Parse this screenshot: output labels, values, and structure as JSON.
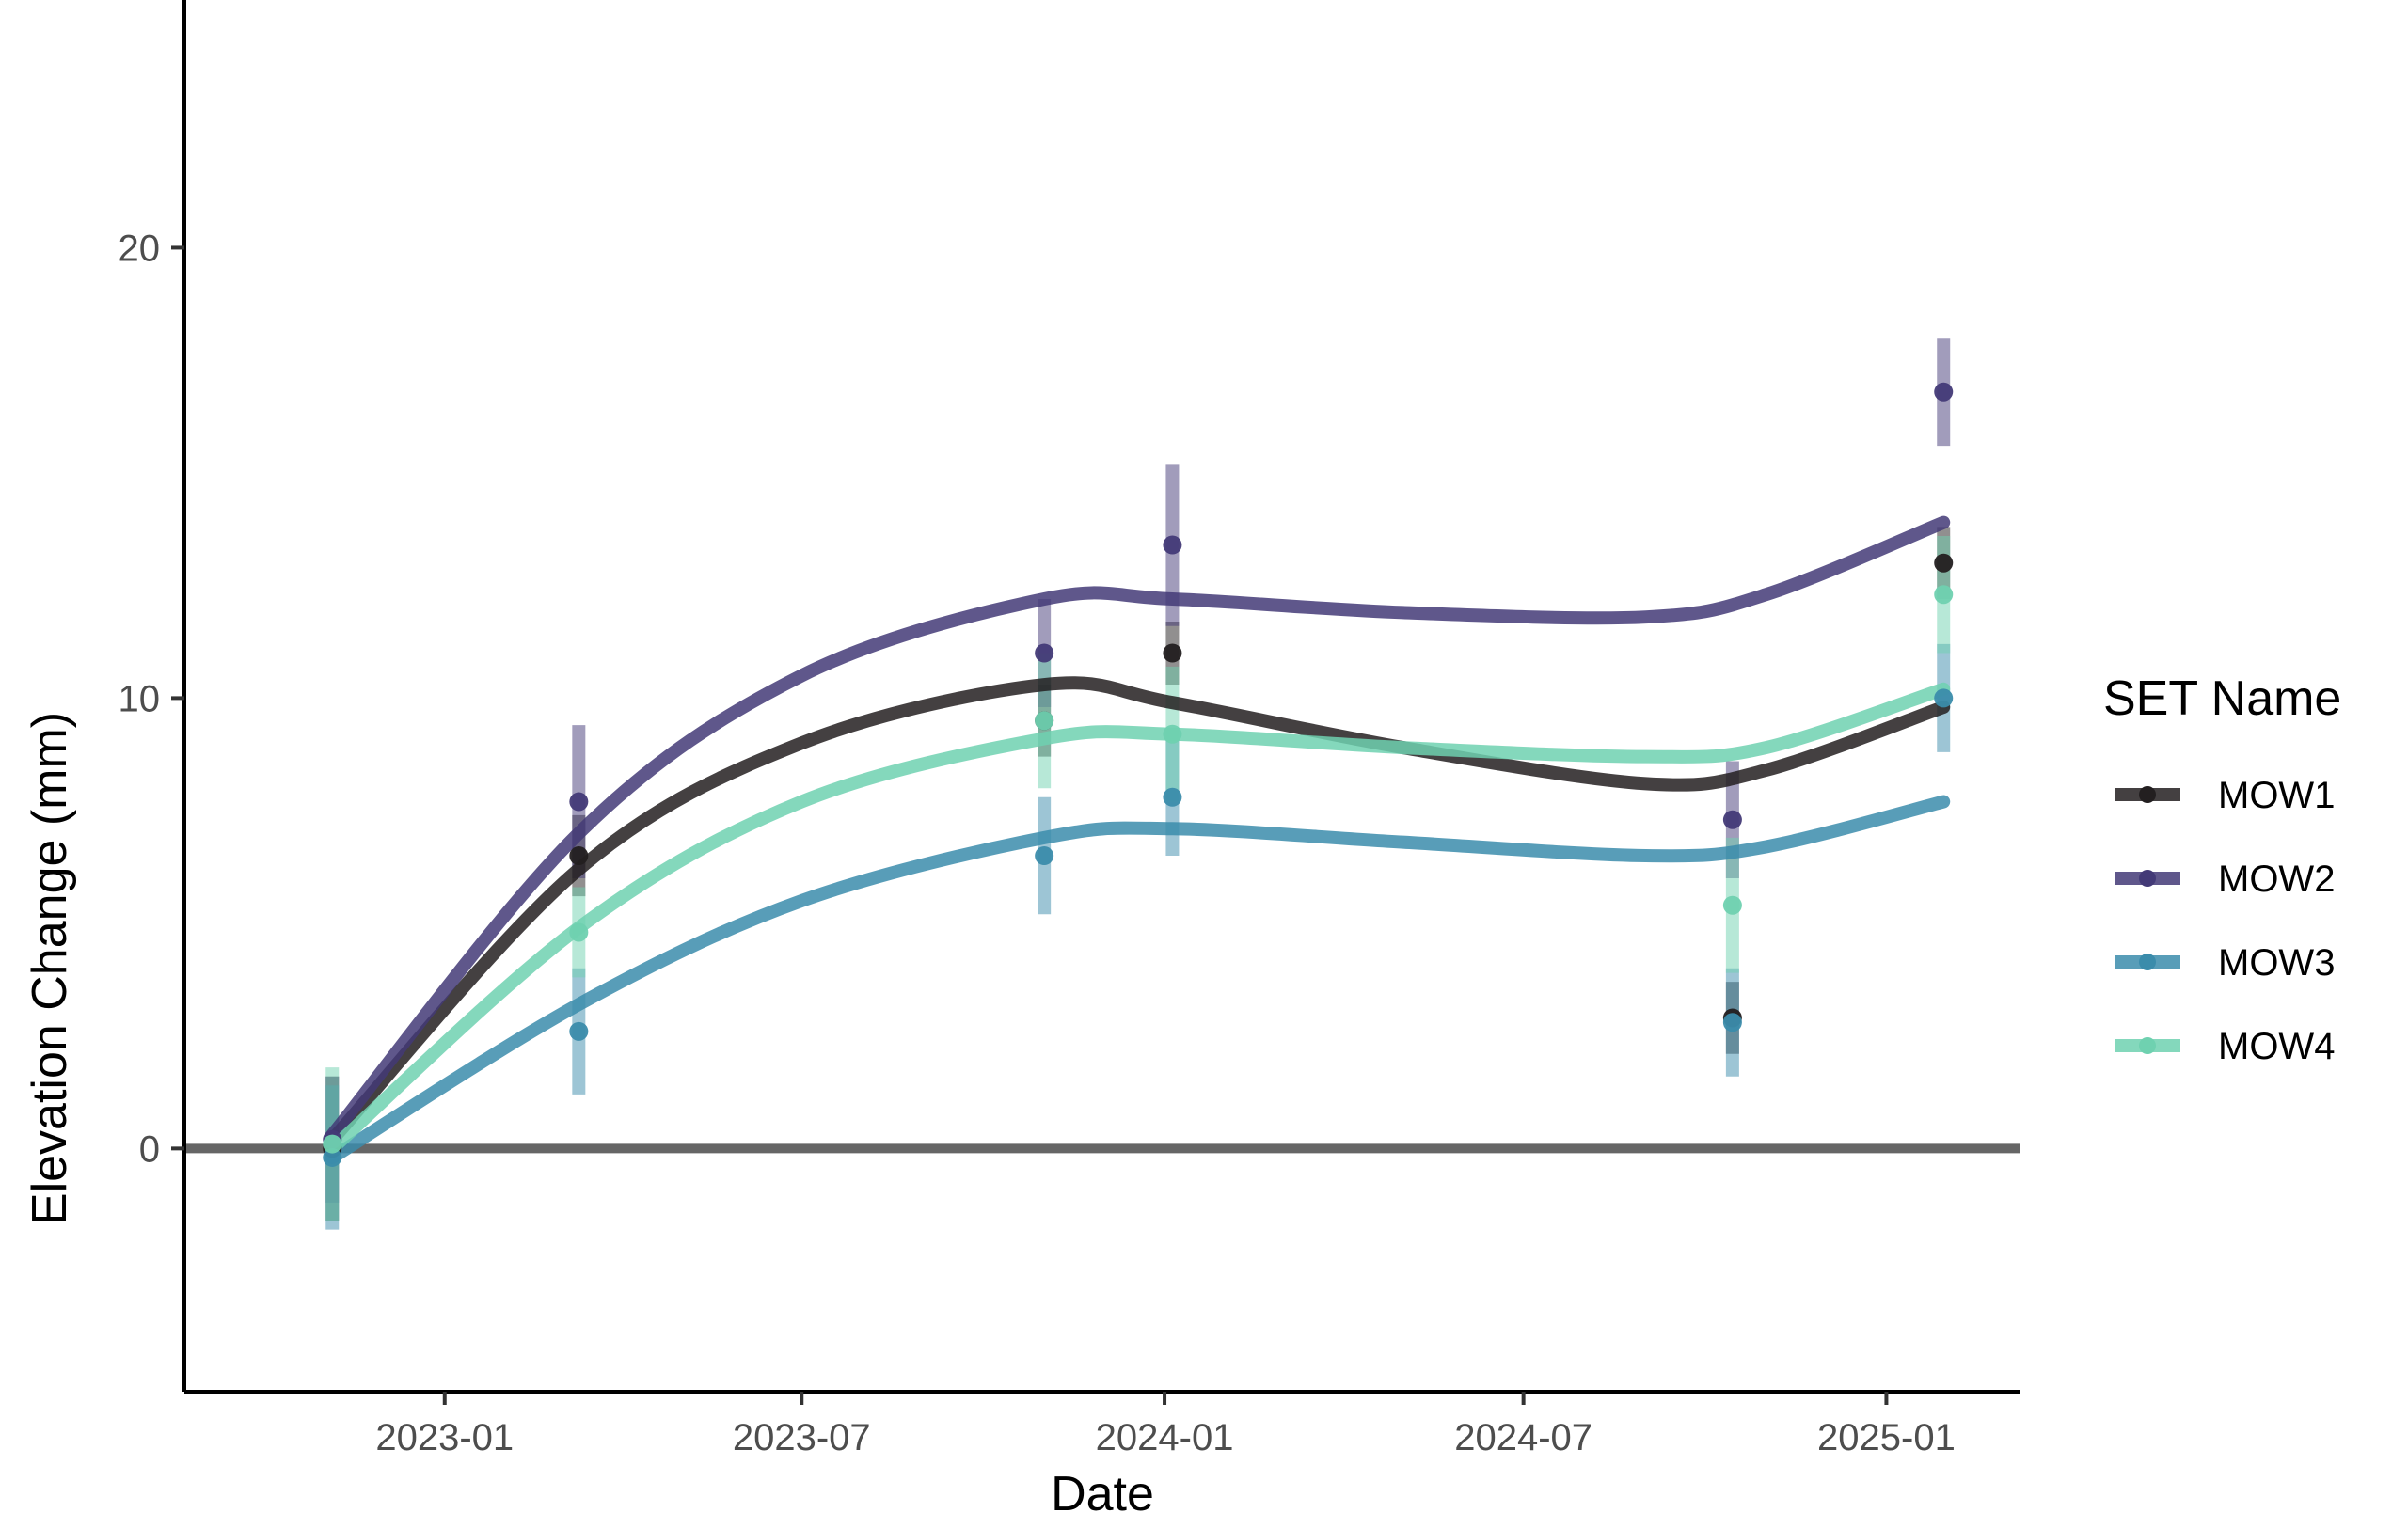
{
  "chart_data": {
    "type": "line",
    "xlabel": "Date",
    "ylabel": "Elevation Change (mm)",
    "x_ticks": [
      "2023-01",
      "2023-07",
      "2024-01",
      "2024-07",
      "2025-01"
    ],
    "y_ticks": [
      0,
      10,
      20
    ],
    "xlim": [
      "2022-08-22",
      "2025-03-10"
    ],
    "ylim": [
      -5.4,
      25.5
    ],
    "reference_line_y": 0,
    "grid": false,
    "legend": {
      "title": "SET Name",
      "position": "right"
    },
    "series": [
      {
        "name": "MOW1",
        "color": "#231f20",
        "points": [
          {
            "date": "2022-11-05",
            "y": 0.0,
            "err": 1.6
          },
          {
            "date": "2023-03-10",
            "y": 6.5,
            "err": 0.9
          },
          {
            "date": "2023-11-01",
            "y": 9.5,
            "err": 0.8
          },
          {
            "date": "2024-01-05",
            "y": 11.0,
            "err": 0.7
          },
          {
            "date": "2024-10-15",
            "y": 2.9,
            "err": 0.8
          },
          {
            "date": "2025-01-30",
            "y": 13.0,
            "err": 0.8
          }
        ],
        "smooth": [
          {
            "date": "2022-11-05",
            "y": 0.2
          },
          {
            "date": "2023-03-10",
            "y": 6.2
          },
          {
            "date": "2023-07-01",
            "y": 9.0
          },
          {
            "date": "2023-11-01",
            "y": 10.3
          },
          {
            "date": "2024-01-05",
            "y": 9.9
          },
          {
            "date": "2024-05-01",
            "y": 8.9
          },
          {
            "date": "2024-09-01",
            "y": 8.1
          },
          {
            "date": "2024-11-01",
            "y": 8.4
          },
          {
            "date": "2025-01-30",
            "y": 9.8
          }
        ]
      },
      {
        "name": "MOW2",
        "color": "#433a77",
        "points": [
          {
            "date": "2022-11-05",
            "y": 0.2,
            "err": 1.4
          },
          {
            "date": "2023-03-10",
            "y": 7.7,
            "err": 1.7
          },
          {
            "date": "2023-11-01",
            "y": 11.0,
            "err": 1.2
          },
          {
            "date": "2024-01-05",
            "y": 13.4,
            "err": 1.8
          },
          {
            "date": "2024-10-15",
            "y": 7.3,
            "err": 1.3
          },
          {
            "date": "2025-01-30",
            "y": 16.8,
            "err": 1.2
          }
        ],
        "smooth": [
          {
            "date": "2022-11-05",
            "y": 0.3
          },
          {
            "date": "2023-03-10",
            "y": 7.0
          },
          {
            "date": "2023-07-01",
            "y": 10.5
          },
          {
            "date": "2023-11-01",
            "y": 12.2
          },
          {
            "date": "2024-01-05",
            "y": 12.2
          },
          {
            "date": "2024-05-01",
            "y": 11.9
          },
          {
            "date": "2024-09-01",
            "y": 11.8
          },
          {
            "date": "2024-11-01",
            "y": 12.3
          },
          {
            "date": "2025-01-30",
            "y": 13.9
          }
        ]
      },
      {
        "name": "MOW3",
        "color": "#3b8cab",
        "points": [
          {
            "date": "2022-11-05",
            "y": -0.2,
            "err": 1.6
          },
          {
            "date": "2023-03-10",
            "y": 2.6,
            "err": 1.4
          },
          {
            "date": "2023-11-01",
            "y": 6.5,
            "err": 1.3
          },
          {
            "date": "2024-01-05",
            "y": 7.8,
            "err": 1.3
          },
          {
            "date": "2024-10-15",
            "y": 2.8,
            "err": 1.2
          },
          {
            "date": "2025-01-30",
            "y": 10.0,
            "err": 1.2
          }
        ],
        "smooth": [
          {
            "date": "2022-11-05",
            "y": -0.2
          },
          {
            "date": "2023-03-10",
            "y": 3.2
          },
          {
            "date": "2023-07-01",
            "y": 5.5
          },
          {
            "date": "2023-11-01",
            "y": 6.9
          },
          {
            "date": "2024-01-05",
            "y": 7.1
          },
          {
            "date": "2024-05-01",
            "y": 6.8
          },
          {
            "date": "2024-09-01",
            "y": 6.5
          },
          {
            "date": "2024-11-01",
            "y": 6.7
          },
          {
            "date": "2025-01-30",
            "y": 7.7
          }
        ]
      },
      {
        "name": "MOW4",
        "color": "#6fd1b0",
        "points": [
          {
            "date": "2022-11-05",
            "y": 0.1,
            "err": 1.7
          },
          {
            "date": "2023-03-10",
            "y": 4.8,
            "err": 1.0
          },
          {
            "date": "2023-11-01",
            "y": 9.5,
            "err": 1.5
          },
          {
            "date": "2024-01-05",
            "y": 9.2,
            "err": 1.5
          },
          {
            "date": "2024-10-15",
            "y": 5.4,
            "err": 1.5
          },
          {
            "date": "2025-01-30",
            "y": 12.3,
            "err": 1.3
          }
        ],
        "smooth": [
          {
            "date": "2022-11-05",
            "y": 0.0
          },
          {
            "date": "2023-03-10",
            "y": 4.9
          },
          {
            "date": "2023-07-01",
            "y": 7.7
          },
          {
            "date": "2023-11-01",
            "y": 9.1
          },
          {
            "date": "2024-01-05",
            "y": 9.2
          },
          {
            "date": "2024-05-01",
            "y": 8.9
          },
          {
            "date": "2024-09-01",
            "y": 8.7
          },
          {
            "date": "2024-11-01",
            "y": 8.9
          },
          {
            "date": "2025-01-30",
            "y": 10.2
          }
        ]
      }
    ]
  }
}
